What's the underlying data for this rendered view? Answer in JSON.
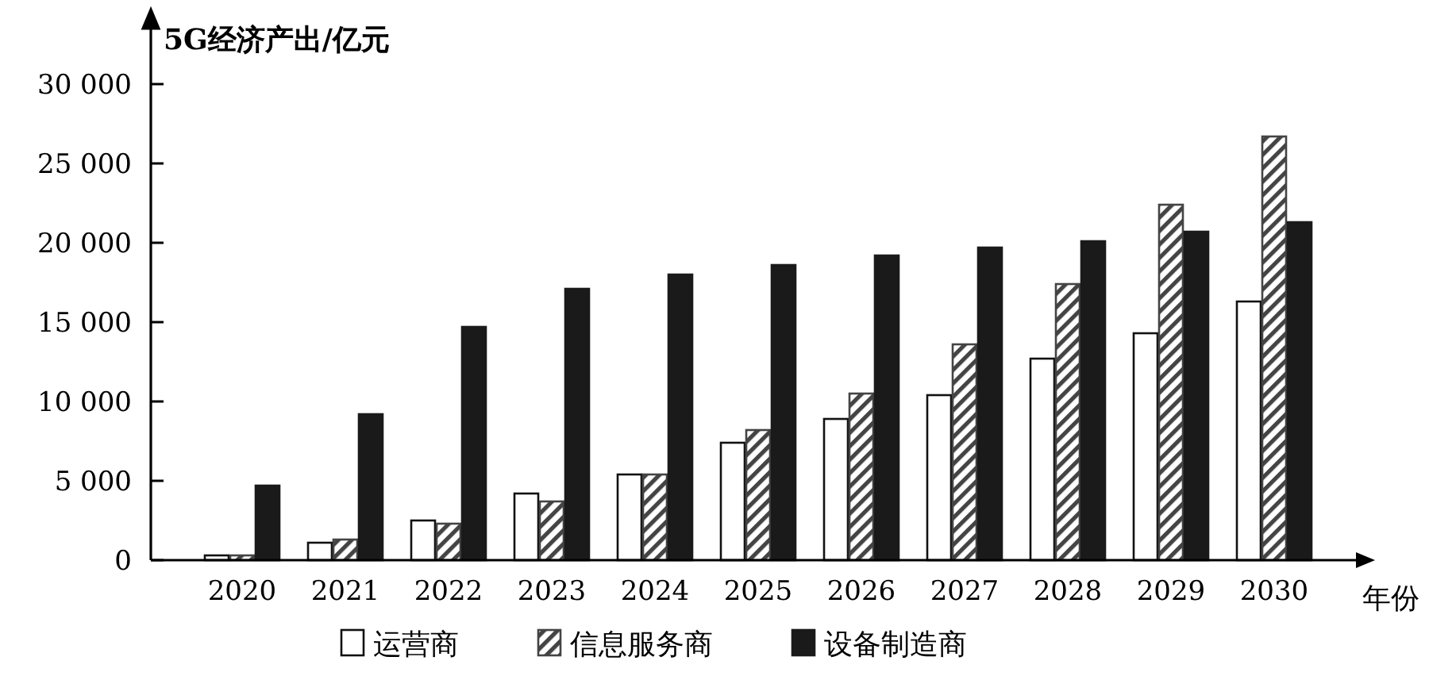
{
  "chart_data": {
    "type": "bar",
    "ylabel": "5G经济产出/亿元",
    "xlabel": "年份",
    "categories": [
      "2020",
      "2021",
      "2022",
      "2023",
      "2024",
      "2025",
      "2026",
      "2027",
      "2028",
      "2029",
      "2030"
    ],
    "series": [
      {
        "name": "运营商",
        "color": "#ffffff",
        "values": [
          300,
          1100,
          2500,
          4200,
          5400,
          7400,
          8900,
          10400,
          12700,
          14300,
          16300
        ]
      },
      {
        "name": "信息服务商",
        "color": "#444444",
        "values": [
          300,
          1300,
          2300,
          3700,
          5400,
          8200,
          10500,
          13600,
          17400,
          22400,
          26700
        ]
      },
      {
        "name": "设备制造商",
        "color": "#1a1a1a",
        "values": [
          4700,
          9200,
          14700,
          17100,
          18000,
          18600,
          19200,
          19700,
          20100,
          20700,
          21300
        ]
      }
    ],
    "ylim": [
      0,
      30000
    ],
    "yticks": [
      0,
      {
        "value": 5000,
        "label": "5 000"
      },
      {
        "value": 10000,
        "label": "10 000"
      },
      {
        "value": 15000,
        "label": "15 000"
      },
      {
        "value": 20000,
        "label": "20 000"
      },
      {
        "value": 25000,
        "label": "25 000"
      },
      {
        "value": 30000,
        "label": "30 000"
      }
    ],
    "grid": false,
    "legend": "bottom"
  }
}
